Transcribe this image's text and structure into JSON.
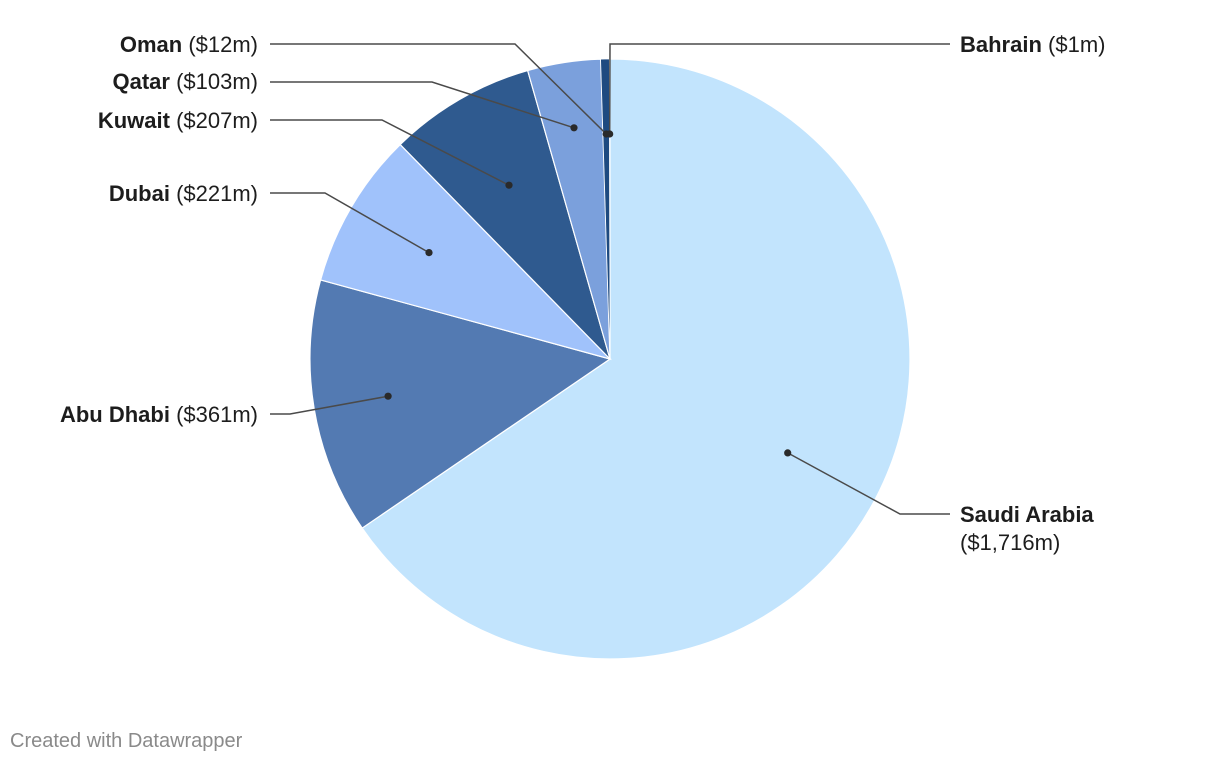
{
  "chart_data": {
    "type": "pie",
    "title": "",
    "slices": [
      {
        "name": "Saudi Arabia",
        "value_label": "($1,716m)",
        "value": 1716,
        "color": "#c2e4fd"
      },
      {
        "name": "Abu Dhabi",
        "value_label": "($361m)",
        "value": 361,
        "color": "#537ab2"
      },
      {
        "name": "Dubai",
        "value_label": "($221m)",
        "value": 221,
        "color": "#a0c2fb"
      },
      {
        "name": "Kuwait",
        "value_label": "($207m)",
        "value": 207,
        "color": "#2f5a8f"
      },
      {
        "name": "Qatar",
        "value_label": "($103m)",
        "value": 103,
        "color": "#7ba0dc"
      },
      {
        "name": "Oman",
        "value_label": "($12m)",
        "value": 12,
        "color": "#1e4a80"
      },
      {
        "name": "Bahrain",
        "value_label": "($1m)",
        "value": 1,
        "color": "#0b2e57"
      }
    ]
  },
  "footer": {
    "credit": "Created with Datawrapper"
  }
}
